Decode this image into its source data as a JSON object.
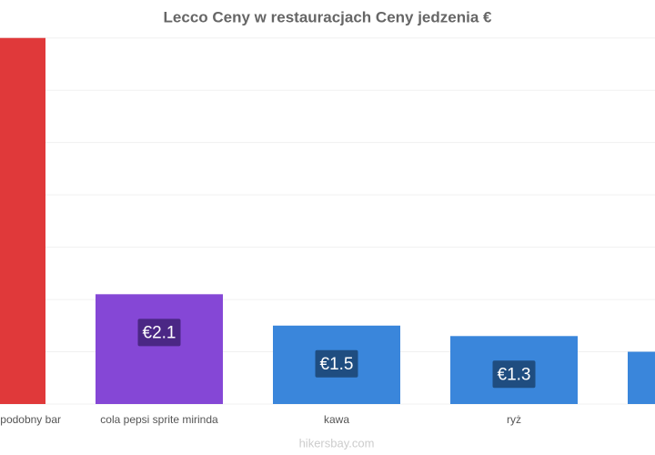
{
  "chart_data": {
    "type": "bar",
    "title": "Lecco Ceny w restauracjach Ceny jedzenia €",
    "categories": [
      "podobny bar",
      "cola pepsi sprite mirinda",
      "kawa",
      "ryż",
      null
    ],
    "values": [
      7.0,
      2.1,
      1.5,
      1.3,
      1.0
    ],
    "value_labels": [
      null,
      "€2.1",
      "€1.5",
      "€1.3",
      null
    ],
    "colors": [
      "#e0393a",
      "#8547d6",
      "#3a86db",
      "#3a86db",
      "#3a86db"
    ],
    "label_box_colors": [
      "#7a1f1f",
      "#4b2785",
      "#1f4d80",
      "#1f4d80",
      "#1f4d80"
    ],
    "ylim": [
      0,
      7.5
    ],
    "yticks": [
      0,
      1,
      2,
      3,
      4,
      5,
      6,
      7
    ],
    "grid": true,
    "source": "hikersbay.com"
  }
}
